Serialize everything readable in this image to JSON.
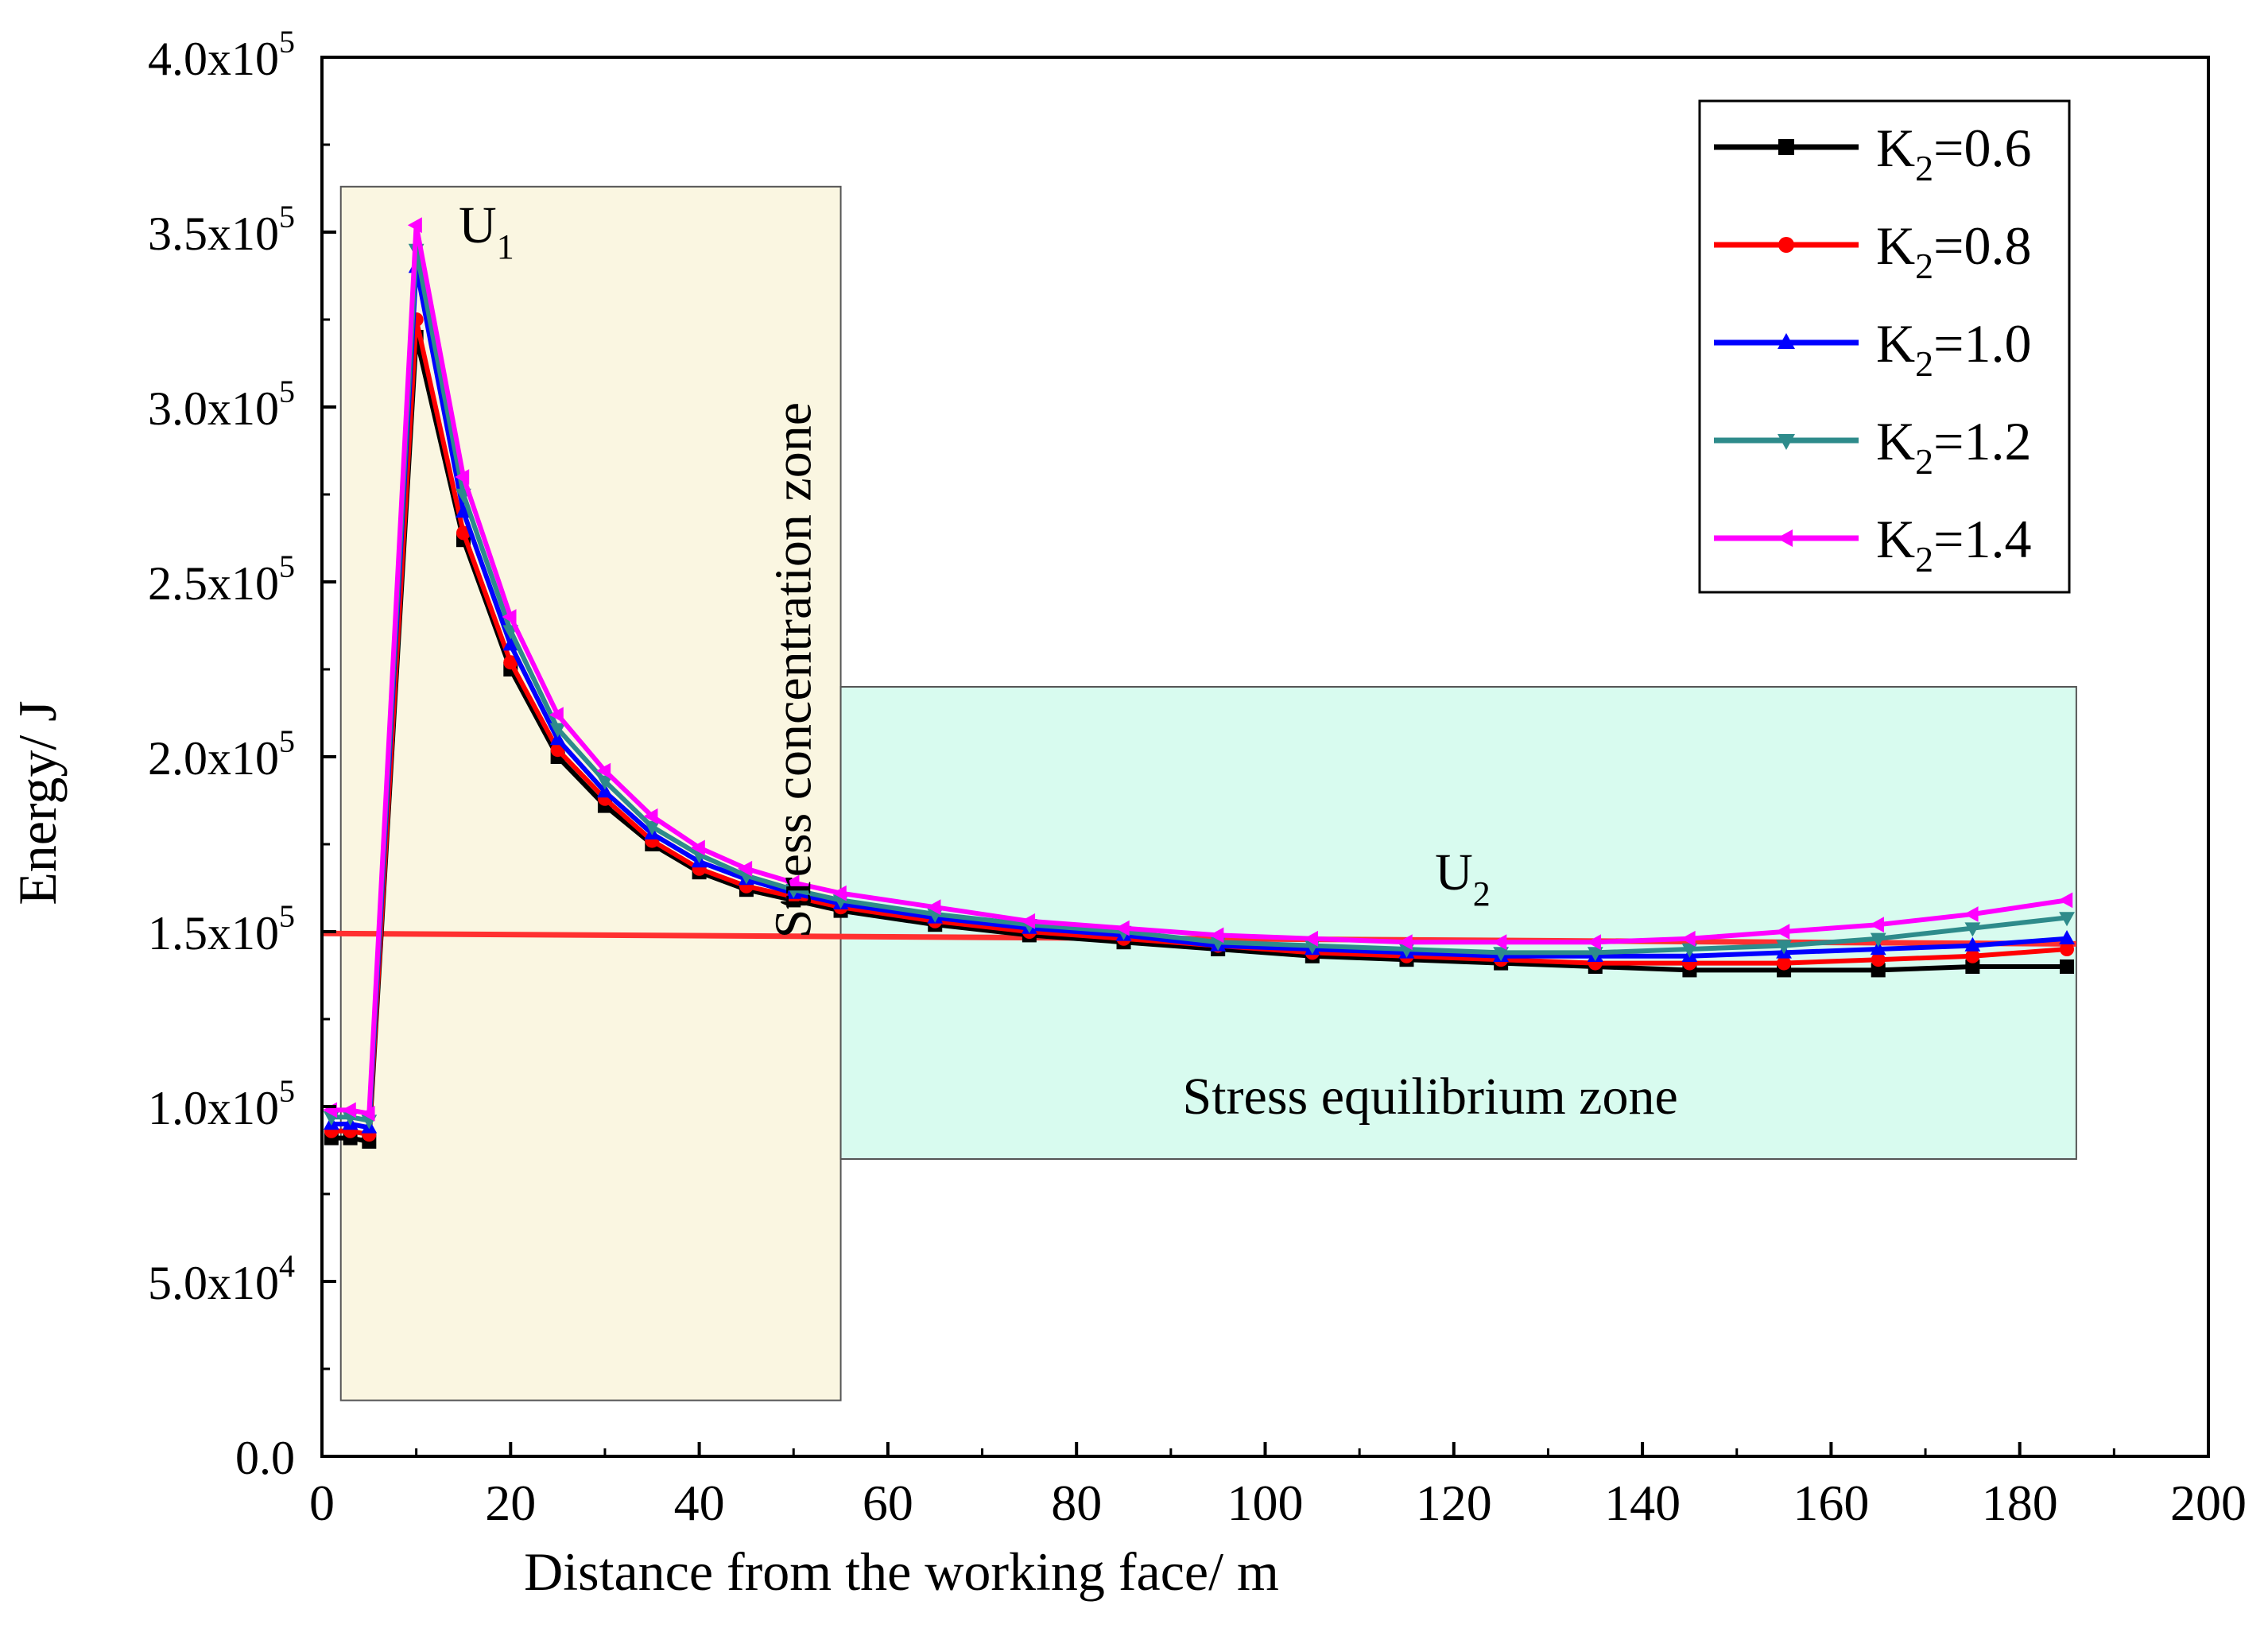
{
  "chart_data": {
    "type": "line",
    "title": "",
    "xlabel": "Distance from the working face/ m",
    "ylabel": "Energy/ J",
    "xlim": [
      0,
      200
    ],
    "ylim": [
      0,
      400000
    ],
    "xticks": [
      0,
      20,
      40,
      60,
      80,
      100,
      120,
      140,
      160,
      180,
      200
    ],
    "xtick_labels": [
      "0",
      "20",
      "40",
      "60",
      "80",
      "100",
      "120",
      "140",
      "160",
      "180",
      "200"
    ],
    "yticks": [
      0,
      50000,
      100000,
      150000,
      200000,
      250000,
      300000,
      350000,
      400000
    ],
    "ytick_labels": [
      {
        "base": "0.0",
        "exp": ""
      },
      {
        "base": "5.0x10",
        "exp": "4"
      },
      {
        "base": "1.0x10",
        "exp": "5"
      },
      {
        "base": "1.5x10",
        "exp": "5"
      },
      {
        "base": "2.0x10",
        "exp": "5"
      },
      {
        "base": "2.5x10",
        "exp": "5"
      },
      {
        "base": "3.0x10",
        "exp": "5"
      },
      {
        "base": "3.5x10",
        "exp": "5"
      },
      {
        "base": "4.0x10",
        "exp": "5"
      }
    ],
    "x": [
      1,
      3,
      5,
      10,
      15,
      20,
      25,
      30,
      35,
      40,
      45,
      50,
      55,
      65,
      75,
      85,
      95,
      105,
      115,
      125,
      135,
      145,
      155,
      165,
      175,
      185
    ],
    "series": [
      {
        "name": "K2=0.6",
        "label_main": "K",
        "label_sub": "2",
        "label_rest": "=0.6",
        "color": "#000000",
        "marker": "square",
        "values": [
          91000,
          91000,
          90000,
          320000,
          262000,
          225000,
          200000,
          186000,
          175000,
          167000,
          162000,
          159000,
          156000,
          152000,
          149000,
          147000,
          145000,
          143000,
          142000,
          141000,
          140000,
          139000,
          139000,
          139000,
          140000,
          140000
        ]
      },
      {
        "name": "K2=0.8",
        "label_main": "K",
        "label_sub": "2",
        "label_rest": "=0.8",
        "color": "#ff0000",
        "marker": "circle",
        "values": [
          93000,
          93000,
          92000,
          325000,
          264000,
          227000,
          202000,
          188000,
          176000,
          168000,
          163000,
          160000,
          157000,
          153000,
          150000,
          148000,
          146000,
          144000,
          143000,
          142000,
          141000,
          141000,
          141000,
          142000,
          143000,
          145000
        ]
      },
      {
        "name": "K2=1.0",
        "label_main": "K",
        "label_sub": "2",
        "label_rest": "=1.0",
        "color": "#0000ff",
        "marker": "triangle-up",
        "values": [
          95000,
          95000,
          94000,
          340000,
          270000,
          232000,
          205000,
          190000,
          178000,
          170000,
          165000,
          161000,
          158000,
          154000,
          151000,
          149000,
          146000,
          145000,
          144000,
          143000,
          143000,
          143000,
          144000,
          145000,
          146000,
          148000
        ]
      },
      {
        "name": "K2=1.2",
        "label_main": "K",
        "label_sub": "2",
        "label_rest": "=1.2",
        "color": "#2e8b8b",
        "marker": "triangle-down",
        "values": [
          97000,
          97000,
          96000,
          345000,
          275000,
          236000,
          208000,
          193000,
          180000,
          172000,
          166000,
          162000,
          159000,
          155000,
          152000,
          150000,
          147000,
          146000,
          145000,
          144000,
          144000,
          145000,
          146000,
          148000,
          151000,
          154000
        ]
      },
      {
        "name": "K2=1.4",
        "label_main": "K",
        "label_sub": "2",
        "label_rest": "=1.4",
        "color": "#ff00ff",
        "marker": "triangle-left",
        "values": [
          99000,
          99000,
          98000,
          352000,
          280000,
          240000,
          212000,
          196000,
          183000,
          174000,
          168000,
          164000,
          161000,
          157000,
          153000,
          151000,
          149000,
          148000,
          147000,
          147000,
          147000,
          148000,
          150000,
          152000,
          155000,
          159000
        ]
      }
    ],
    "reference_line": {
      "color": "#ff3030",
      "x": [
        0,
        186
      ],
      "y": [
        149500,
        146500
      ]
    },
    "regions": [
      {
        "name": "stress-concentration",
        "label": "Stress concentration zone",
        "x0": 2,
        "x1": 55,
        "y0": 16000,
        "y1": 363000,
        "fill": "#faf6e1"
      },
      {
        "name": "stress-equilibrium",
        "label": "Stress equilibrium zone",
        "x0": 55,
        "x1": 186,
        "y0": 85000,
        "y1": 220000,
        "fill": "#d8fbef"
      }
    ],
    "annotations": [
      {
        "name": "u1",
        "main": "U",
        "sub": "1",
        "x": 14.5,
        "y": 347000
      },
      {
        "name": "u2",
        "main": "U",
        "sub": "2",
        "x": 118,
        "y": 162000
      }
    ],
    "legend_position": "top-right",
    "grid": false
  }
}
